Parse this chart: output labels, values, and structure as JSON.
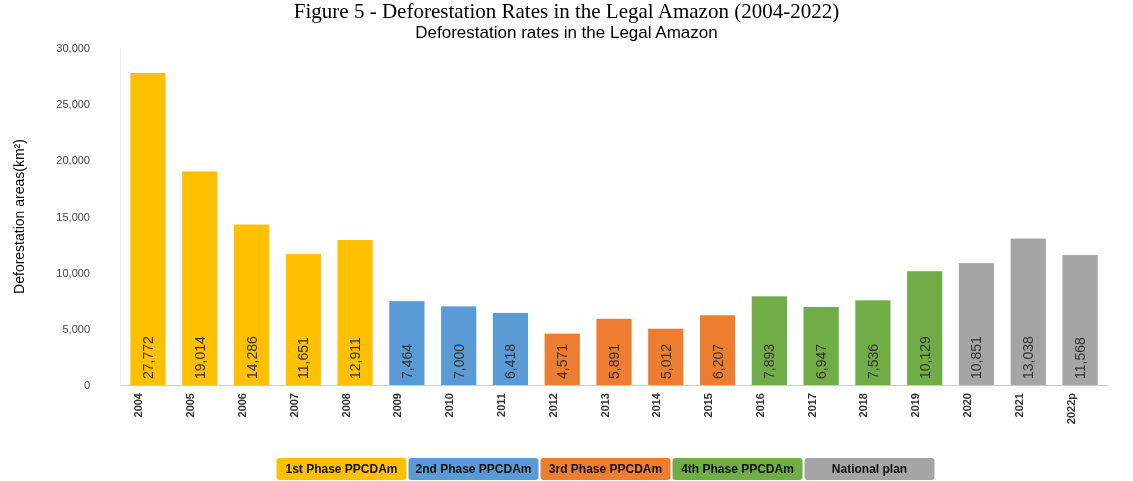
{
  "chart_data": {
    "type": "bar",
    "title": "Figure 5 - Deforestation Rates in the Legal Amazon (2004-2022)",
    "subtitle": "Deforestation rates in the Legal Amazon",
    "ylabel": "Deforestation areas(km²)",
    "categories": [
      "2004",
      "2005",
      "2006",
      "2007",
      "2008",
      "2009",
      "2010",
      "2011",
      "2012",
      "2013",
      "2014",
      "2015",
      "2016",
      "2017",
      "2018",
      "2019",
      "2020",
      "2021",
      "2022p"
    ],
    "series": [
      {
        "name": "1st Phase PPCDAm",
        "color": "#ffc000",
        "values": [
          27772,
          19014,
          14286,
          11651,
          12911,
          null,
          null,
          null,
          null,
          null,
          null,
          null,
          null,
          null,
          null,
          null,
          null,
          null,
          null
        ],
        "value_labels": [
          "27,772",
          "19,014",
          "14,286",
          "11,651",
          "12,911",
          null,
          null,
          null,
          null,
          null,
          null,
          null,
          null,
          null,
          null,
          null,
          null,
          null,
          null
        ]
      },
      {
        "name": "2nd Phase PPCDAm",
        "color": "#5b9bd5",
        "values": [
          null,
          null,
          null,
          null,
          null,
          7464,
          7000,
          6418,
          null,
          null,
          null,
          null,
          null,
          null,
          null,
          null,
          null,
          null,
          null
        ],
        "value_labels": [
          null,
          null,
          null,
          null,
          null,
          "7,464",
          "7,000",
          "6,418",
          null,
          null,
          null,
          null,
          null,
          null,
          null,
          null,
          null,
          null,
          null
        ]
      },
      {
        "name": "3rd Phase PPCDAm",
        "color": "#ed7d31",
        "values": [
          null,
          null,
          null,
          null,
          null,
          null,
          null,
          null,
          4571,
          5891,
          5012,
          6207,
          null,
          null,
          null,
          null,
          null,
          null,
          null
        ],
        "value_labels": [
          null,
          null,
          null,
          null,
          null,
          null,
          null,
          null,
          "4,571",
          "5,891",
          "5,012",
          "6,207",
          null,
          null,
          null,
          null,
          null,
          null,
          null
        ]
      },
      {
        "name": "4th Phase PPCDAm",
        "color": "#70ad47",
        "values": [
          null,
          null,
          null,
          null,
          null,
          null,
          null,
          null,
          null,
          null,
          null,
          null,
          7893,
          6947,
          7536,
          10129,
          null,
          null,
          null
        ],
        "value_labels": [
          null,
          null,
          null,
          null,
          null,
          null,
          null,
          null,
          null,
          null,
          null,
          null,
          "7,893",
          "6,947",
          "7,536",
          "10,129",
          null,
          null,
          null
        ]
      },
      {
        "name": "National plan",
        "color": "#a5a5a5",
        "values": [
          null,
          null,
          null,
          null,
          null,
          null,
          null,
          null,
          null,
          null,
          null,
          null,
          null,
          null,
          null,
          null,
          10851,
          13038,
          11568
        ],
        "value_labels": [
          null,
          null,
          null,
          null,
          null,
          null,
          null,
          null,
          null,
          null,
          null,
          null,
          null,
          null,
          null,
          null,
          "10,851",
          "13,038",
          "11,568"
        ]
      }
    ],
    "ylim": [
      0,
      30000
    ],
    "yticks": [
      {
        "value": 0,
        "label": "0"
      },
      {
        "value": 5000,
        "label": "5,000"
      },
      {
        "value": 10000,
        "label": "10,000"
      },
      {
        "value": 15000,
        "label": "15,000"
      },
      {
        "value": 20000,
        "label": "20,000"
      },
      {
        "value": 25000,
        "label": "25,000"
      },
      {
        "value": 30000,
        "label": "30,000"
      }
    ],
    "legend": "bottom"
  }
}
